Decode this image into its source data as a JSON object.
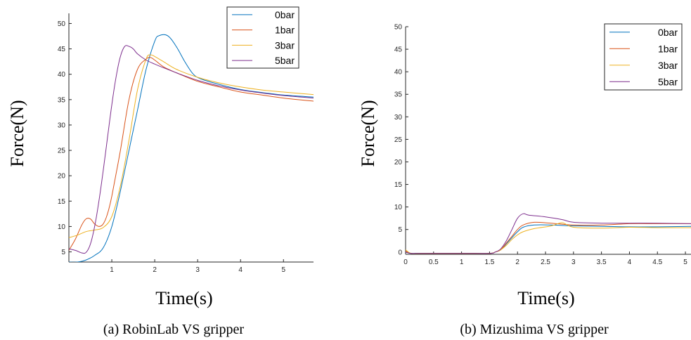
{
  "colors": {
    "0bar": "#0072BD",
    "1bar": "#D95319",
    "3bar": "#EDB120",
    "5bar": "#7E2F8E",
    "axis": "#262626"
  },
  "chart_data": [
    {
      "type": "line",
      "caption": "(a) RobinLab VS gripper",
      "xlabel": "Time(s)",
      "ylabel": "Force(N)",
      "xlim": [
        0,
        5.7
      ],
      "ylim": [
        3,
        52
      ],
      "xticks": [
        1,
        2,
        3,
        4,
        5
      ],
      "yticks": [
        5,
        10,
        15,
        20,
        25,
        30,
        35,
        40,
        45,
        50
      ],
      "legend": "top-right",
      "grid": false,
      "series": [
        {
          "name": "0bar",
          "color_key": "0bar",
          "x": [
            0,
            0.2,
            0.4,
            0.6,
            0.8,
            1.0,
            1.2,
            1.4,
            1.6,
            1.8,
            2.0,
            2.1,
            2.3,
            2.5,
            2.7,
            2.9,
            3.1,
            3.5,
            4.0,
            4.5,
            5.0,
            5.7
          ],
          "y": [
            3.0,
            3.0,
            3.4,
            4.3,
            5.8,
            10.0,
            17.0,
            25.0,
            33.0,
            41.0,
            46.5,
            47.6,
            47.6,
            45.5,
            42.5,
            40.0,
            39.0,
            38.0,
            37.0,
            36.4,
            35.9,
            35.5
          ]
        },
        {
          "name": "1bar",
          "color_key": "1bar",
          "x": [
            0,
            0.15,
            0.3,
            0.4,
            0.5,
            0.6,
            0.7,
            0.8,
            0.9,
            1.0,
            1.2,
            1.4,
            1.6,
            1.8,
            1.9,
            2.0,
            2.2,
            2.5,
            3.0,
            3.5,
            4.0,
            4.5,
            5.0,
            5.7
          ],
          "y": [
            5.3,
            7.5,
            10.3,
            11.5,
            11.5,
            10.5,
            10.0,
            10.5,
            12.5,
            16.0,
            25.0,
            35.0,
            41.0,
            43.0,
            43.3,
            42.8,
            41.5,
            40.3,
            38.6,
            37.5,
            36.5,
            35.9,
            35.3,
            34.7
          ]
        },
        {
          "name": "3bar",
          "color_key": "3bar",
          "x": [
            0,
            0.2,
            0.4,
            0.6,
            0.8,
            1.0,
            1.2,
            1.4,
            1.6,
            1.8,
            1.9,
            2.0,
            2.2,
            2.5,
            3.0,
            3.5,
            4.0,
            4.5,
            5.0,
            5.7
          ],
          "y": [
            7.8,
            8.3,
            9.0,
            9.3,
            9.8,
            12.0,
            18.0,
            27.0,
            37.0,
            43.0,
            43.8,
            43.5,
            42.5,
            41.0,
            39.4,
            38.3,
            37.5,
            36.9,
            36.5,
            36.0
          ]
        },
        {
          "name": "5bar",
          "color_key": "5bar",
          "x": [
            0,
            0.15,
            0.3,
            0.4,
            0.5,
            0.6,
            0.7,
            0.8,
            0.9,
            1.0,
            1.1,
            1.2,
            1.3,
            1.4,
            1.5,
            1.6,
            1.8,
            2.0,
            2.2,
            2.5,
            3.0,
            3.5,
            4.0,
            4.5,
            5.0,
            5.7
          ],
          "y": [
            5.6,
            5.3,
            4.8,
            4.9,
            6.5,
            10.0,
            15.0,
            21.0,
            27.5,
            34.0,
            39.5,
            43.5,
            45.5,
            45.5,
            45.0,
            44.0,
            42.8,
            42.0,
            41.3,
            40.3,
            38.8,
            37.7,
            36.9,
            36.3,
            35.8,
            35.3
          ]
        }
      ]
    },
    {
      "type": "line",
      "caption": "(b) Mizushima VS gripper",
      "xlabel": "Time(s)",
      "ylabel": "Force(N)",
      "xlim": [
        0,
        5.1
      ],
      "ylim": [
        -0.5,
        50
      ],
      "xticks": [
        0,
        0.5,
        1,
        1.5,
        2,
        2.5,
        3,
        3.5,
        4,
        4.5,
        5
      ],
      "xtick_labels": [
        "0",
        "0.5",
        "1",
        "1.5",
        "2",
        "2.5",
        "3",
        "3.5",
        "4",
        "4.5",
        "5"
      ],
      "yticks": [
        0,
        5,
        10,
        15,
        20,
        25,
        30,
        35,
        40,
        45,
        50
      ],
      "legend": "top-right",
      "grid": false,
      "series": [
        {
          "name": "0bar",
          "color_key": "0bar",
          "x": [
            0,
            0.1,
            0.3,
            1.0,
            1.5,
            1.6,
            1.7,
            1.8,
            1.9,
            2.0,
            2.1,
            2.3,
            2.6,
            3.0,
            3.5,
            4.0,
            4.5,
            5.1
          ],
          "y": [
            0,
            -0.3,
            -0.3,
            -0.3,
            -0.3,
            0,
            0.5,
            1.8,
            3.2,
            4.5,
            5.5,
            6.0,
            6.0,
            5.8,
            5.7,
            5.6,
            5.6,
            5.7
          ]
        },
        {
          "name": "1bar",
          "color_key": "1bar",
          "x": [
            0,
            0.1,
            0.3,
            1.0,
            1.5,
            1.6,
            1.7,
            1.8,
            1.9,
            2.0,
            2.1,
            2.3,
            2.6,
            3.0,
            3.5,
            4.0,
            4.5,
            5.1
          ],
          "y": [
            0.2,
            -0.3,
            -0.3,
            -0.3,
            -0.3,
            0,
            0.5,
            2.0,
            3.5,
            5.0,
            6.0,
            6.6,
            6.4,
            6.0,
            6.0,
            6.3,
            6.3,
            6.3
          ]
        },
        {
          "name": "3bar",
          "color_key": "3bar",
          "x": [
            0,
            0.1,
            0.3,
            1.0,
            1.5,
            1.6,
            1.7,
            1.8,
            1.9,
            2.0,
            2.1,
            2.3,
            2.6,
            2.8,
            3.0,
            3.5,
            4.0,
            4.5,
            5.1
          ],
          "y": [
            0.5,
            -0.3,
            -0.3,
            -0.3,
            -0.3,
            0,
            0.5,
            1.5,
            2.8,
            3.8,
            4.5,
            5.2,
            5.8,
            6.5,
            5.5,
            5.3,
            5.5,
            5.4,
            5.4
          ]
        },
        {
          "name": "5bar",
          "color_key": "5bar",
          "x": [
            0,
            0.1,
            0.3,
            1.0,
            1.5,
            1.6,
            1.7,
            1.8,
            1.9,
            2.0,
            2.1,
            2.2,
            2.5,
            2.8,
            3.0,
            3.5,
            4.0,
            4.5,
            5.1
          ],
          "y": [
            0,
            -0.3,
            -0.3,
            -0.3,
            -0.3,
            0,
            0.7,
            2.5,
            5.0,
            7.5,
            8.5,
            8.2,
            7.8,
            7.2,
            6.6,
            6.4,
            6.4,
            6.4,
            6.3
          ]
        }
      ]
    }
  ]
}
